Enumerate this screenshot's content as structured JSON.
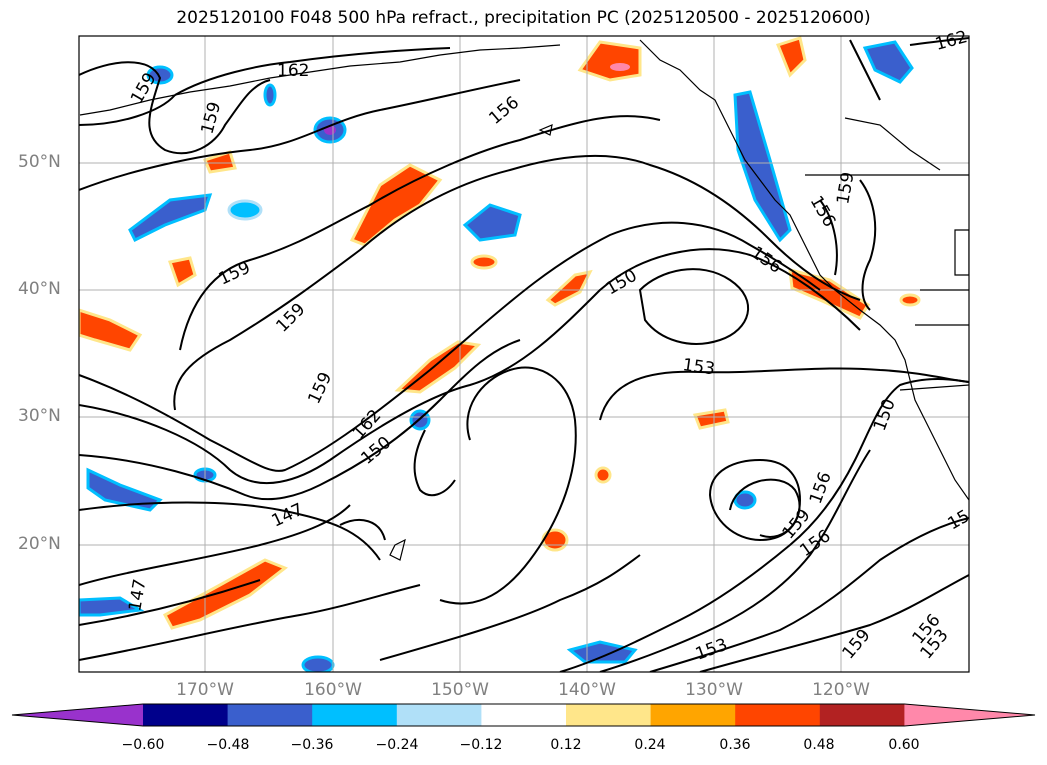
{
  "title": "2025120100 F048 500 hPa refract., precipitation PC (2025120500 - 2025120600)",
  "lat_labels": [
    "50°N",
    "40°N",
    "30°N",
    "20°N"
  ],
  "lon_labels": [
    "170°W",
    "160°W",
    "150°W",
    "140°W",
    "130°W",
    "120°W"
  ],
  "contour_labels": [
    "162",
    "159",
    "159",
    "156",
    "159",
    "159",
    "159",
    "162",
    "150",
    "147",
    "147",
    "150",
    "156",
    "153",
    "159",
    "156",
    "150",
    "156",
    "159",
    "156",
    "153",
    "159",
    "156",
    "153",
    "162",
    "15"
  ],
  "colorbar": {
    "ticks": [
      "−0.60",
      "−0.48",
      "−0.36",
      "−0.24",
      "−0.12",
      "0.12",
      "0.24",
      "0.36",
      "0.48",
      "0.60"
    ],
    "colors": [
      "#9932cc",
      "#00008b",
      "#3a5fcd",
      "#00bfff",
      "#b0e0f8",
      "#ffffff",
      "#ffe68a",
      "#ffa500",
      "#ff4500",
      "#b22222",
      "#ff88aa"
    ]
  }
}
